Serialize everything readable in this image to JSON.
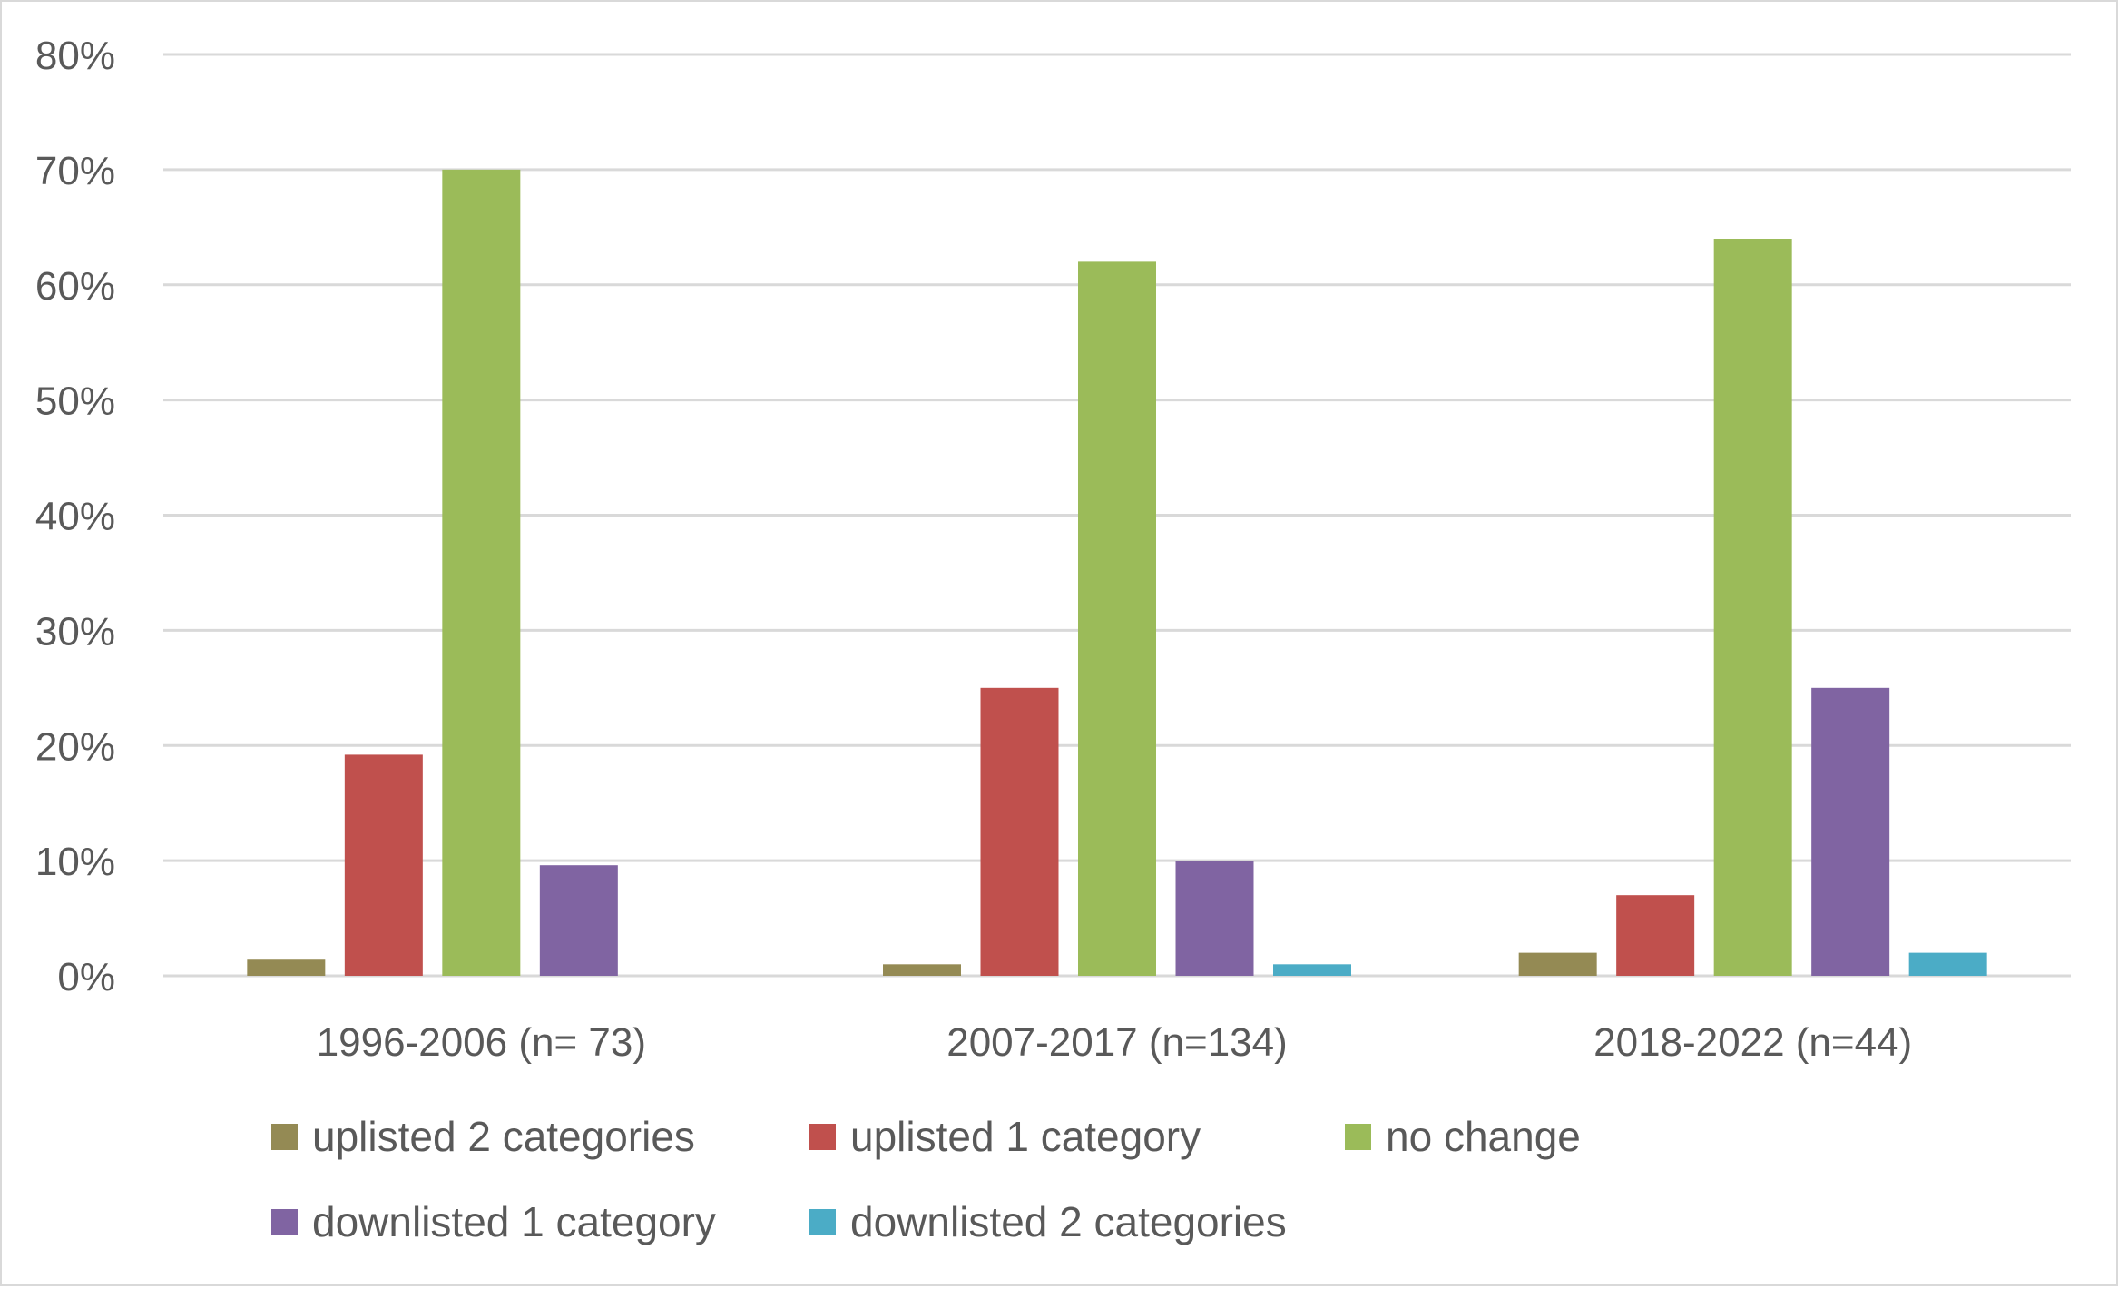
{
  "chart_data": {
    "type": "bar",
    "title": "",
    "xlabel": "",
    "ylabel": "",
    "ylim": [
      0,
      0.8
    ],
    "y_ticks": [
      0,
      0.1,
      0.2,
      0.3,
      0.4,
      0.5,
      0.6,
      0.7,
      0.8
    ],
    "y_tick_labels": [
      "0%",
      "10%",
      "20%",
      "30%",
      "40%",
      "50%",
      "60%",
      "70%",
      "80%"
    ],
    "y_format": "percent",
    "grid": true,
    "legend_position": "bottom",
    "categories": [
      "1996-2006 (n= 73)",
      "2007-2017 (n=134)",
      "2018-2022 (n=44)"
    ],
    "series": [
      {
        "name": "uplisted 2 categories",
        "color": "#948A54",
        "values": [
          0.014,
          0.01,
          0.02
        ]
      },
      {
        "name": "uplisted 1 category",
        "color": "#C0504D",
        "values": [
          0.192,
          0.25,
          0.07
        ]
      },
      {
        "name": "no change",
        "color": "#9BBB59",
        "values": [
          0.7,
          0.62,
          0.64
        ]
      },
      {
        "name": "downlisted 1 category",
        "color": "#8064A2",
        "values": [
          0.096,
          0.1,
          0.25
        ]
      },
      {
        "name": "downlisted 2 categories",
        "color": "#4BACC6",
        "values": [
          0,
          0.01,
          0.02
        ]
      }
    ]
  }
}
